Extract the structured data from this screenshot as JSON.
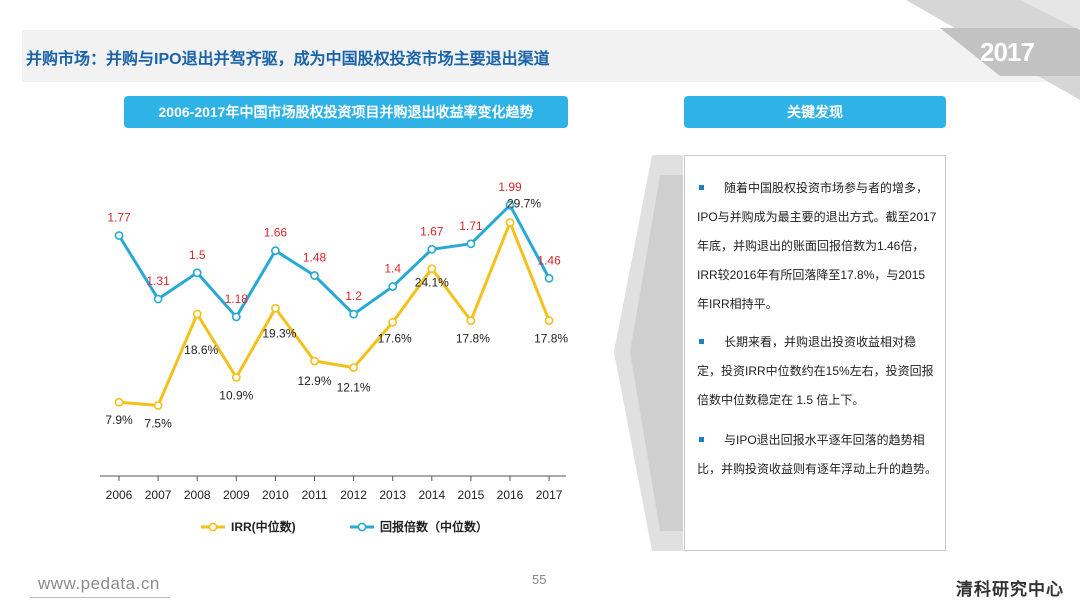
{
  "header": {
    "title": "并购市场：并购与IPO退出并驾齐驱，成为中国股权投资市场主要退出渠道",
    "year_badge": "2017"
  },
  "chart_title": "2006-2017年中国市场股权投资项目并购退出收益率变化趋势",
  "findings": {
    "title": "关键发现",
    "items": [
      "随着中国股权投资市场参与者的增多，IPO与并购成为最主要的退出方式。截至2017年底，并购退出的账面回报倍数为1.46倍，IRR较2016年有所回落降至17.8%，与2015年IRR相持平。",
      "长期来看，并购退出投资收益相对稳定，投资IRR中位数约在15%左右，投资回报倍数中位数稳定在 1.5 倍上下。",
      "与IPO退出回报水平逐年回落的趋势相比，并购投资收益则有逐年浮动上升的趋势。"
    ]
  },
  "footer": {
    "url": "www.pedata.cn",
    "page_number": "55",
    "brand": "清科研究中心"
  },
  "colors": {
    "irr": "#f5c01a",
    "multiple": "#27a9d6",
    "multiple_label": "#d9262b",
    "accent": "#2fb2e6",
    "title_text": "#1a63a8"
  },
  "chart_data": {
    "type": "line",
    "categories": [
      "2006",
      "2007",
      "2008",
      "2009",
      "2010",
      "2011",
      "2012",
      "2013",
      "2014",
      "2015",
      "2016",
      "2017"
    ],
    "series": [
      {
        "name": "IRR(中位数)",
        "values": [
          7.9,
          7.5,
          18.6,
          10.9,
          19.3,
          12.9,
          12.1,
          17.6,
          24.1,
          17.8,
          29.7,
          17.8
        ],
        "labels": [
          "7.9%",
          "7.5%",
          "18.6%",
          "10.9%",
          "19.3%",
          "12.9%",
          "12.1%",
          "17.6%",
          "24.1%",
          "17.8%",
          "29.7%",
          "17.8%"
        ]
      },
      {
        "name": "回报倍数（中位数）",
        "values": [
          1.77,
          1.31,
          1.5,
          1.18,
          1.66,
          1.48,
          1.2,
          1.4,
          1.67,
          1.71,
          1.99,
          1.46
        ],
        "labels": [
          "1.77",
          "1.31",
          "1.5",
          "1.18",
          "1.66",
          "1.48",
          "1.2",
          "1.4",
          "1.67",
          "1.71",
          "1.99",
          "1.46"
        ]
      }
    ],
    "legend_position": "bottom",
    "grid": false
  }
}
